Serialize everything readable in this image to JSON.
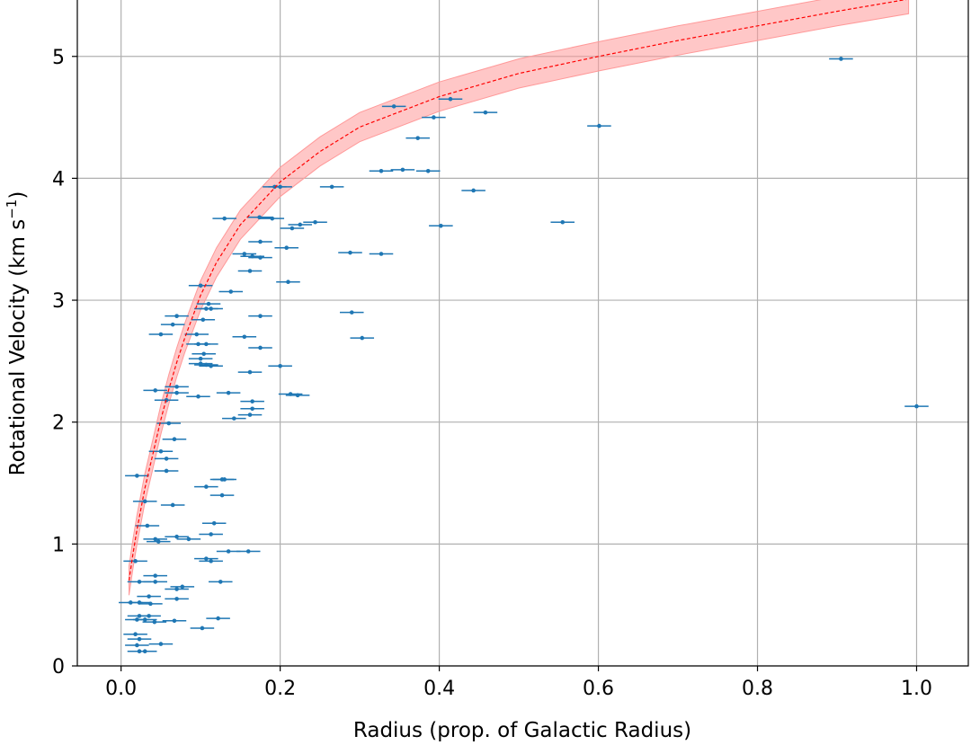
{
  "chart_data": {
    "type": "scatter",
    "title": "",
    "xlabel": "Radius (prop. of Galactic Radius)",
    "ylabel_main": "Rotational Velocity (km s",
    "ylabel_sup": "−1",
    "ylabel_close": ")",
    "xlim": [
      -0.055,
      1.065
    ],
    "ylim": [
      0,
      5.47
    ],
    "xticks": [
      0.0,
      0.2,
      0.4,
      0.6,
      0.8,
      1.0
    ],
    "xtick_labels": [
      "0.0",
      "0.2",
      "0.4",
      "0.6",
      "0.8",
      "1.0"
    ],
    "yticks": [
      0,
      1,
      2,
      3,
      4,
      5
    ],
    "ytick_labels": [
      "0",
      "1",
      "2",
      "3",
      "4",
      "5"
    ],
    "grid": true,
    "colors": {
      "points": "#1f77b4",
      "fit_line": "#ff0000",
      "band": "#ff9999"
    },
    "fit_curve": {
      "style": "dashed",
      "points": [
        [
          0.01,
          0.7
        ],
        [
          0.015,
          0.92
        ],
        [
          0.02,
          1.12
        ],
        [
          0.03,
          1.46
        ],
        [
          0.04,
          1.74
        ],
        [
          0.05,
          2.02
        ],
        [
          0.06,
          2.27
        ],
        [
          0.07,
          2.49
        ],
        [
          0.08,
          2.69
        ],
        [
          0.1,
          3.04
        ],
        [
          0.12,
          3.31
        ],
        [
          0.15,
          3.62
        ],
        [
          0.2,
          3.97
        ],
        [
          0.25,
          4.22
        ],
        [
          0.3,
          4.42
        ],
        [
          0.4,
          4.67
        ],
        [
          0.5,
          4.86
        ],
        [
          0.6,
          5.0
        ],
        [
          0.7,
          5.13
        ],
        [
          0.8,
          5.25
        ],
        [
          0.9,
          5.37
        ],
        [
          0.99,
          5.47
        ]
      ],
      "band_halfwidth": 0.12
    },
    "series": [
      {
        "xerr": 0.015,
        "points": [
          [
            0.905,
            4.98
          ],
          [
            1.0,
            2.13
          ],
          [
            0.601,
            4.43
          ],
          [
            0.555,
            3.64
          ],
          [
            0.414,
            4.65
          ],
          [
            0.458,
            4.54
          ],
          [
            0.393,
            4.5
          ],
          [
            0.343,
            4.59
          ],
          [
            0.373,
            4.33
          ],
          [
            0.443,
            3.9
          ],
          [
            0.402,
            3.61
          ],
          [
            0.327,
            4.06
          ],
          [
            0.354,
            4.07
          ],
          [
            0.386,
            4.06
          ],
          [
            0.265,
            3.93
          ],
          [
            0.288,
            3.39
          ],
          [
            0.327,
            3.38
          ],
          [
            0.29,
            2.9
          ],
          [
            0.303,
            2.69
          ],
          [
            0.193,
            3.93
          ],
          [
            0.2,
            3.93
          ],
          [
            0.244,
            3.64
          ],
          [
            0.225,
            3.62
          ],
          [
            0.215,
            3.59
          ],
          [
            0.208,
            3.43
          ],
          [
            0.21,
            3.15
          ],
          [
            0.2,
            2.46
          ],
          [
            0.213,
            2.23
          ],
          [
            0.222,
            2.22
          ],
          [
            0.13,
            3.67
          ],
          [
            0.174,
            3.68
          ],
          [
            0.19,
            3.67
          ],
          [
            0.175,
            3.48
          ],
          [
            0.155,
            3.38
          ],
          [
            0.165,
            3.36
          ],
          [
            0.175,
            3.35
          ],
          [
            0.162,
            3.24
          ],
          [
            0.138,
            3.07
          ],
          [
            0.175,
            2.87
          ],
          [
            0.155,
            2.7
          ],
          [
            0.175,
            2.61
          ],
          [
            0.162,
            2.41
          ],
          [
            0.135,
            2.24
          ],
          [
            0.165,
            2.17
          ],
          [
            0.165,
            2.11
          ],
          [
            0.162,
            2.06
          ],
          [
            0.142,
            2.03
          ],
          [
            0.1,
            3.12
          ],
          [
            0.11,
            2.97
          ],
          [
            0.107,
            2.93
          ],
          [
            0.113,
            2.93
          ],
          [
            0.103,
            2.84
          ],
          [
            0.07,
            2.87
          ],
          [
            0.065,
            2.8
          ],
          [
            0.05,
            2.72
          ],
          [
            0.095,
            2.72
          ],
          [
            0.097,
            2.64
          ],
          [
            0.107,
            2.64
          ],
          [
            0.104,
            2.56
          ],
          [
            0.1,
            2.52
          ],
          [
            0.107,
            2.47
          ],
          [
            0.113,
            2.46
          ],
          [
            0.1,
            2.48
          ],
          [
            0.07,
            2.29
          ],
          [
            0.07,
            2.24
          ],
          [
            0.043,
            2.26
          ],
          [
            0.057,
            2.18
          ],
          [
            0.097,
            2.21
          ],
          [
            0.06,
            1.99
          ],
          [
            0.067,
            1.86
          ],
          [
            0.05,
            1.76
          ],
          [
            0.057,
            1.7
          ],
          [
            0.057,
            1.6
          ],
          [
            0.02,
            1.56
          ],
          [
            0.03,
            1.35
          ],
          [
            0.065,
            1.32
          ],
          [
            0.13,
            1.53
          ],
          [
            0.127,
            1.53
          ],
          [
            0.107,
            1.47
          ],
          [
            0.127,
            1.4
          ],
          [
            0.117,
            1.17
          ],
          [
            0.113,
            1.08
          ],
          [
            0.033,
            1.15
          ],
          [
            0.043,
            1.04
          ],
          [
            0.047,
            1.02
          ],
          [
            0.07,
            1.06
          ],
          [
            0.085,
            1.04
          ],
          [
            0.135,
            0.94
          ],
          [
            0.16,
            0.94
          ],
          [
            0.107,
            0.88
          ],
          [
            0.113,
            0.86
          ],
          [
            0.018,
            0.86
          ],
          [
            0.043,
            0.74
          ],
          [
            0.023,
            0.69
          ],
          [
            0.043,
            0.69
          ],
          [
            0.125,
            0.69
          ],
          [
            0.077,
            0.65
          ],
          [
            0.07,
            0.63
          ],
          [
            0.07,
            0.55
          ],
          [
            0.035,
            0.57
          ],
          [
            0.023,
            0.52
          ],
          [
            0.037,
            0.51
          ],
          [
            0.012,
            0.52
          ],
          [
            0.02,
            0.38
          ],
          [
            0.023,
            0.41
          ],
          [
            0.035,
            0.41
          ],
          [
            0.03,
            0.38
          ],
          [
            0.042,
            0.36
          ],
          [
            0.067,
            0.37
          ],
          [
            0.122,
            0.39
          ],
          [
            0.102,
            0.31
          ],
          [
            0.018,
            0.26
          ],
          [
            0.023,
            0.22
          ],
          [
            0.05,
            0.18
          ],
          [
            0.02,
            0.17
          ],
          [
            0.023,
            0.12
          ],
          [
            0.03,
            0.12
          ]
        ]
      }
    ]
  }
}
